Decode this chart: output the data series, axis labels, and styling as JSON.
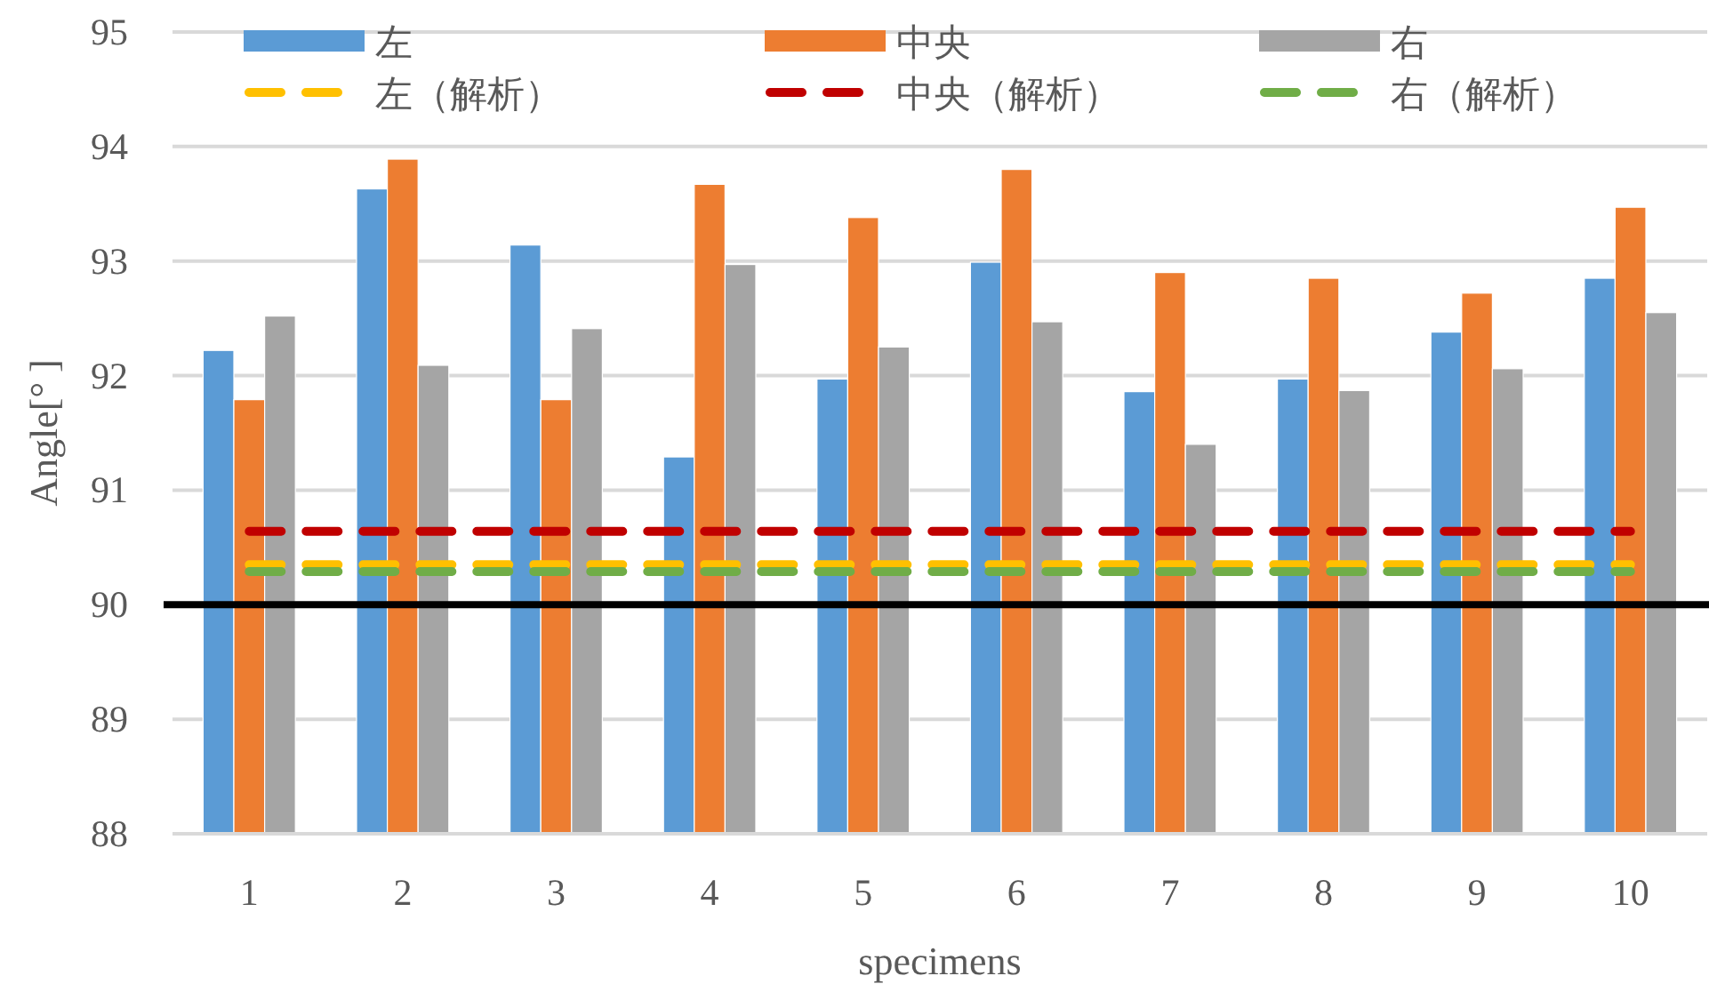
{
  "chart_data": {
    "type": "bar",
    "xlabel": "specimens",
    "ylabel": "Angle[° ]",
    "categories": [
      "1",
      "2",
      "3",
      "4",
      "5",
      "6",
      "7",
      "8",
      "9",
      "10"
    ],
    "series": [
      {
        "name": "左",
        "color": "#5b9bd5",
        "values": [
          92.22,
          93.63,
          93.14,
          91.29,
          91.97,
          92.99,
          91.86,
          91.97,
          92.38,
          92.85
        ]
      },
      {
        "name": "中央",
        "color": "#ed7d31",
        "values": [
          91.79,
          93.89,
          91.79,
          93.67,
          93.38,
          93.8,
          92.9,
          92.85,
          92.72,
          93.47
        ]
      },
      {
        "name": "右",
        "color": "#a5a5a5",
        "values": [
          92.52,
          92.09,
          92.41,
          92.97,
          92.25,
          92.47,
          91.4,
          91.87,
          92.06,
          92.55
        ]
      },
      {
        "name": "左（解析）",
        "type": "line",
        "line_style": "dashed",
        "color": "#ffc000",
        "values": [
          90.35,
          90.35,
          90.35,
          90.35,
          90.35,
          90.35,
          90.35,
          90.35,
          90.35,
          90.35
        ]
      },
      {
        "name": "中央（解析）",
        "type": "line",
        "line_style": "dashed",
        "color": "#c00000",
        "values": [
          90.64,
          90.64,
          90.64,
          90.64,
          90.64,
          90.64,
          90.64,
          90.64,
          90.64,
          90.64
        ]
      },
      {
        "name": "右（解析）",
        "type": "line",
        "line_style": "dashed",
        "color": "#70ad47",
        "values": [
          90.29,
          90.29,
          90.29,
          90.29,
          90.29,
          90.29,
          90.29,
          90.29,
          90.29,
          90.29
        ]
      }
    ],
    "ylim": [
      88,
      95
    ],
    "yticks": [
      88,
      89,
      90,
      91,
      92,
      93,
      94,
      95
    ],
    "grid": "y",
    "legend": "top",
    "ref_lines": [
      {
        "axis": "y",
        "value": 90,
        "color": "#000000"
      }
    ]
  }
}
